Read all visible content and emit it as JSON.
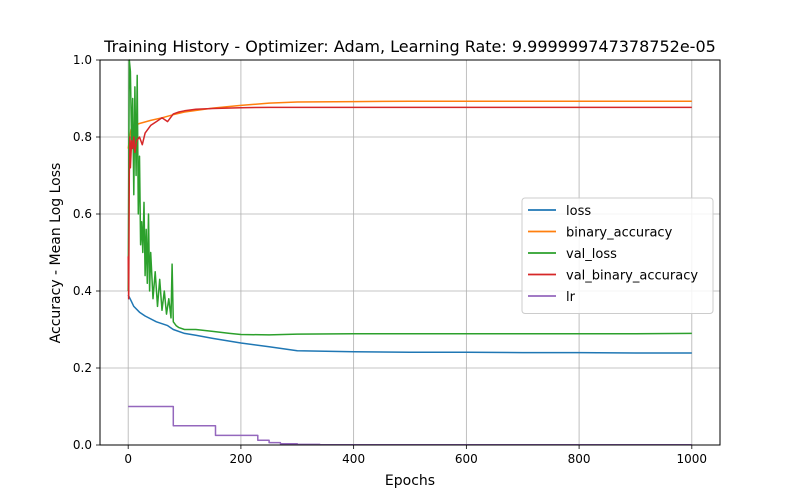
{
  "chart_data": {
    "type": "line",
    "title": "Training History - Optimizer: Adam, Learning Rate: 9.999999747378752e-05",
    "xlabel": "Epochs",
    "ylabel": "Accuracy - Mean Log Loss",
    "xlim": [
      -50,
      1050
    ],
    "ylim": [
      0.0,
      1.0
    ],
    "xticks": [
      0,
      200,
      400,
      600,
      800,
      1000
    ],
    "xtick_labels": [
      "0",
      "200",
      "400",
      "600",
      "800",
      "1000"
    ],
    "yticks": [
      0.0,
      0.2,
      0.4,
      0.6,
      0.8,
      1.0
    ],
    "ytick_labels": [
      "0.0",
      "0.2",
      "0.4",
      "0.6",
      "0.8",
      "1.0"
    ],
    "grid": true,
    "legend_position": "center-right",
    "series": [
      {
        "name": "loss",
        "color": "#1f77b4",
        "x": [
          0,
          5,
          10,
          20,
          30,
          50,
          70,
          80,
          100,
          120,
          150,
          200,
          250,
          300,
          400,
          500,
          600,
          700,
          800,
          900,
          1000
        ],
        "y": [
          0.39,
          0.375,
          0.36,
          0.345,
          0.335,
          0.32,
          0.31,
          0.3,
          0.29,
          0.285,
          0.277,
          0.265,
          0.255,
          0.245,
          0.242,
          0.241,
          0.241,
          0.24,
          0.24,
          0.239,
          0.239
        ]
      },
      {
        "name": "binary_accuracy",
        "color": "#ff7f0e",
        "x": [
          0,
          3,
          5,
          10,
          20,
          40,
          60,
          80,
          100,
          150,
          200,
          250,
          300,
          400,
          500,
          600,
          700,
          800,
          900,
          1000
        ],
        "y": [
          0.77,
          0.8,
          0.82,
          0.83,
          0.835,
          0.843,
          0.85,
          0.858,
          0.865,
          0.875,
          0.882,
          0.888,
          0.891,
          0.892,
          0.893,
          0.893,
          0.893,
          0.893,
          0.893,
          0.893
        ]
      },
      {
        "name": "val_loss",
        "color": "#2ca02c",
        "x": [
          0,
          2,
          4,
          6,
          8,
          10,
          12,
          14,
          16,
          18,
          20,
          22,
          24,
          26,
          28,
          30,
          32,
          34,
          36,
          38,
          40,
          44,
          48,
          52,
          56,
          60,
          64,
          68,
          72,
          76,
          78,
          80,
          85,
          90,
          100,
          120,
          150,
          180,
          200,
          250,
          300,
          400,
          500,
          600,
          700,
          800,
          900,
          1000
        ],
        "y": [
          0.4,
          1.0,
          0.97,
          0.78,
          0.9,
          0.65,
          0.93,
          0.7,
          0.96,
          0.6,
          0.75,
          0.52,
          0.58,
          0.5,
          0.63,
          0.44,
          0.56,
          0.42,
          0.6,
          0.4,
          0.5,
          0.38,
          0.45,
          0.36,
          0.43,
          0.35,
          0.4,
          0.34,
          0.38,
          0.33,
          0.47,
          0.32,
          0.31,
          0.305,
          0.3,
          0.3,
          0.295,
          0.29,
          0.287,
          0.286,
          0.288,
          0.289,
          0.289,
          0.289,
          0.289,
          0.289,
          0.289,
          0.29
        ]
      },
      {
        "name": "val_binary_accuracy",
        "color": "#d62728",
        "x": [
          0,
          1,
          2,
          3,
          4,
          6,
          8,
          10,
          12,
          15,
          20,
          25,
          30,
          40,
          50,
          60,
          70,
          80,
          90,
          100,
          120,
          150,
          200,
          250,
          300,
          400,
          500,
          600,
          700,
          800,
          900,
          1000
        ],
        "y": [
          0.49,
          0.38,
          0.7,
          0.8,
          0.72,
          0.79,
          0.77,
          0.8,
          0.76,
          0.79,
          0.8,
          0.78,
          0.81,
          0.83,
          0.84,
          0.85,
          0.84,
          0.86,
          0.865,
          0.868,
          0.872,
          0.874,
          0.876,
          0.877,
          0.877,
          0.877,
          0.877,
          0.877,
          0.877,
          0.877,
          0.877,
          0.877
        ]
      },
      {
        "name": "lr",
        "color": "#9467bd",
        "step": true,
        "x": [
          0,
          80,
          80,
          155,
          155,
          230,
          230,
          250,
          250,
          270,
          270,
          300,
          300,
          340,
          340,
          1000
        ],
        "y": [
          0.1,
          0.1,
          0.05,
          0.05,
          0.025,
          0.025,
          0.0125,
          0.0125,
          0.00625,
          0.00625,
          0.003,
          0.003,
          0.0015,
          0.0015,
          0.0005,
          0.0005
        ]
      }
    ]
  }
}
